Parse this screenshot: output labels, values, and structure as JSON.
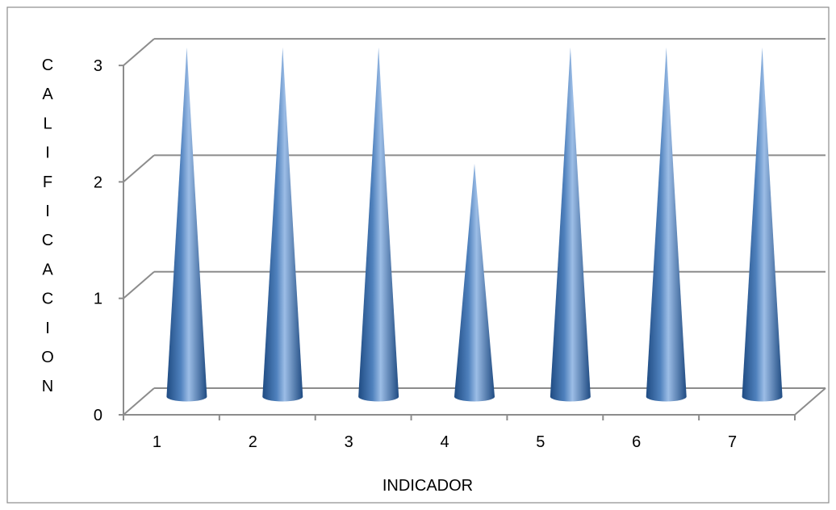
{
  "chart_data": {
    "type": "bar",
    "bar_shape": "cone-3d",
    "categories": [
      "1",
      "2",
      "3",
      "4",
      "5",
      "6",
      "7"
    ],
    "values": [
      3,
      3,
      3,
      2,
      3,
      3,
      3
    ],
    "title": "",
    "xlabel": "INDICADOR",
    "ylabel": "CALIFICACION",
    "ylim": [
      0,
      3
    ],
    "yticks": [
      "0",
      "1",
      "2",
      "3"
    ],
    "grid": true,
    "legend": "none"
  },
  "colors": {
    "cone_dark": "#1f4b82",
    "cone_mid": "#4f81bd",
    "cone_light": "#9cbde6",
    "gridline": "#8c8c8c",
    "border": "#8c8c8c"
  }
}
